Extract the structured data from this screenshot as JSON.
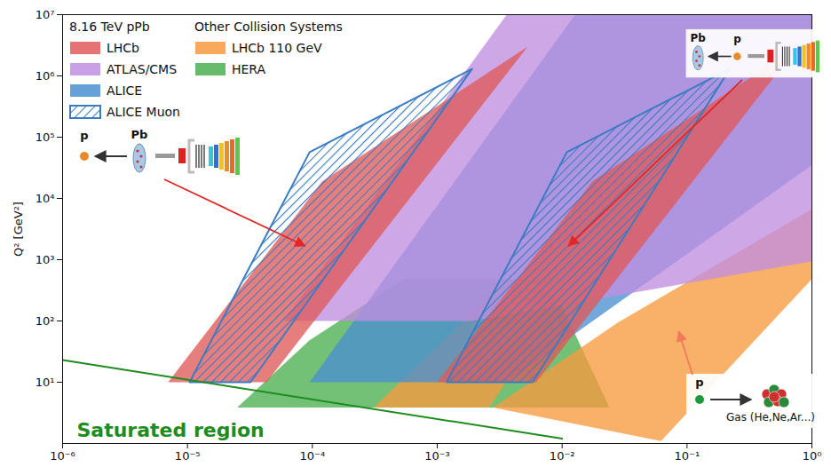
{
  "chart_data": {
    "type": "area",
    "log": true,
    "grid": false,
    "legend": "top-left",
    "y_label": "Q² [GeV²]",
    "xlim": [
      1e-06,
      1
    ],
    "ylim": [
      1,
      10000000
    ],
    "xticks": [
      {
        "value": 1e-06,
        "label": "10⁻⁶"
      },
      {
        "value": 1e-05,
        "label": "10⁻⁵"
      },
      {
        "value": 0.0001,
        "label": "10⁻⁴"
      },
      {
        "value": 0.001,
        "label": "10⁻³"
      },
      {
        "value": 0.01,
        "label": "10⁻²"
      },
      {
        "value": 0.1,
        "label": "10⁻¹"
      },
      {
        "value": 1,
        "label": "10⁰"
      }
    ],
    "yticks": [
      {
        "value": 10,
        "label": "10¹"
      },
      {
        "value": 100,
        "label": "10²"
      },
      {
        "value": 1000,
        "label": "10³"
      },
      {
        "value": 10000,
        "label": "10⁴"
      },
      {
        "value": 100000,
        "label": "10⁵"
      },
      {
        "value": 1000000,
        "label": "10⁶"
      },
      {
        "value": 10000000,
        "label": "10⁷"
      }
    ],
    "legend_titles": [
      "8.16 TeV pPb",
      "Other Collision Systems"
    ],
    "series": [
      {
        "name": "LHCb",
        "group": "8.16 TeV pPb",
        "color": "#e05a5a",
        "polygons": [
          [
            [
              7e-06,
              10
            ],
            [
              4.3e-05,
              10
            ],
            [
              0.0053,
              3000000
            ],
            [
              0.00012,
              19000
            ]
          ],
          [
            [
              0.001,
              10
            ],
            [
              0.0062,
              10
            ],
            [
              0.77,
              3000000
            ],
            [
              0.0175,
              19000
            ]
          ]
        ]
      },
      {
        "name": "ATLAS/CMS",
        "group": "8.16 TeV pPb",
        "color": "#c08ee0",
        "polygons": [
          [
            [
              5.9e-05,
              100
            ],
            [
              0.0019,
              100
            ],
            [
              1,
              940
            ],
            [
              1,
              10000000
            ],
            [
              0.0036,
              10000000
            ]
          ]
        ]
      },
      {
        "name": "ALICE",
        "group": "8.16 TeV pPb",
        "color": "#4a8fd0",
        "polygons": [
          [
            [
              9.5e-05,
              10
            ],
            [
              0.0036,
              10
            ],
            [
              1,
              35000
            ],
            [
              1,
              10000000
            ],
            [
              0.0127,
              10000000
            ]
          ]
        ]
      },
      {
        "name": "ALICE Muon",
        "group": "8.16 TeV pPb",
        "color": "#3a7cc4",
        "line_style": "hatched",
        "polygons": [
          [
            [
              1.04e-05,
              10
            ],
            [
              3.2e-05,
              10
            ],
            [
              0.0019,
              1300000
            ],
            [
              9.5e-05,
              57000
            ]
          ],
          [
            [
              0.00119,
              10
            ],
            [
              0.0058,
              10
            ],
            [
              0.22,
              1300000
            ],
            [
              0.0109,
              57000
            ]
          ]
        ]
      },
      {
        "name": "LHCb 110 GeV",
        "group": "Other Collision Systems",
        "color": "#f79a3e",
        "polygons": [
          [
            [
              0.00031,
              3.85
            ],
            [
              0.0026,
              3.85
            ],
            [
              0.0127,
              485
            ],
            [
              0.0036,
              485
            ]
          ],
          [
            [
              0.0028,
              3.85
            ],
            [
              0.062,
              1.1
            ],
            [
              1,
              485
            ],
            [
              1,
              6700
            ],
            [
              0.028,
              94
            ]
          ]
        ]
      },
      {
        "name": "HERA",
        "group": "Other Collision Systems",
        "color": "#4caf50",
        "polygons": [
          [
            [
              2.5e-05,
              3.85
            ],
            [
              0.0239,
              3.85
            ],
            [
              0.0079,
              485
            ],
            [
              0.00054,
              485
            ],
            [
              9.5e-05,
              48.5
            ]
          ]
        ]
      }
    ],
    "saturation_line": {
      "label": "Saturated region",
      "color": "#1e8c1e",
      "x": [
        1e-06,
        0.01
      ],
      "y": [
        23,
        1.2
      ]
    },
    "annotations": [
      {
        "labels": [
          "p",
          "Pb"
        ]
      },
      {
        "labels": [
          "Pb",
          "p"
        ]
      },
      {
        "labels": [
          "p",
          "Gas (He,Ne,Ar...)"
        ]
      }
    ]
  }
}
